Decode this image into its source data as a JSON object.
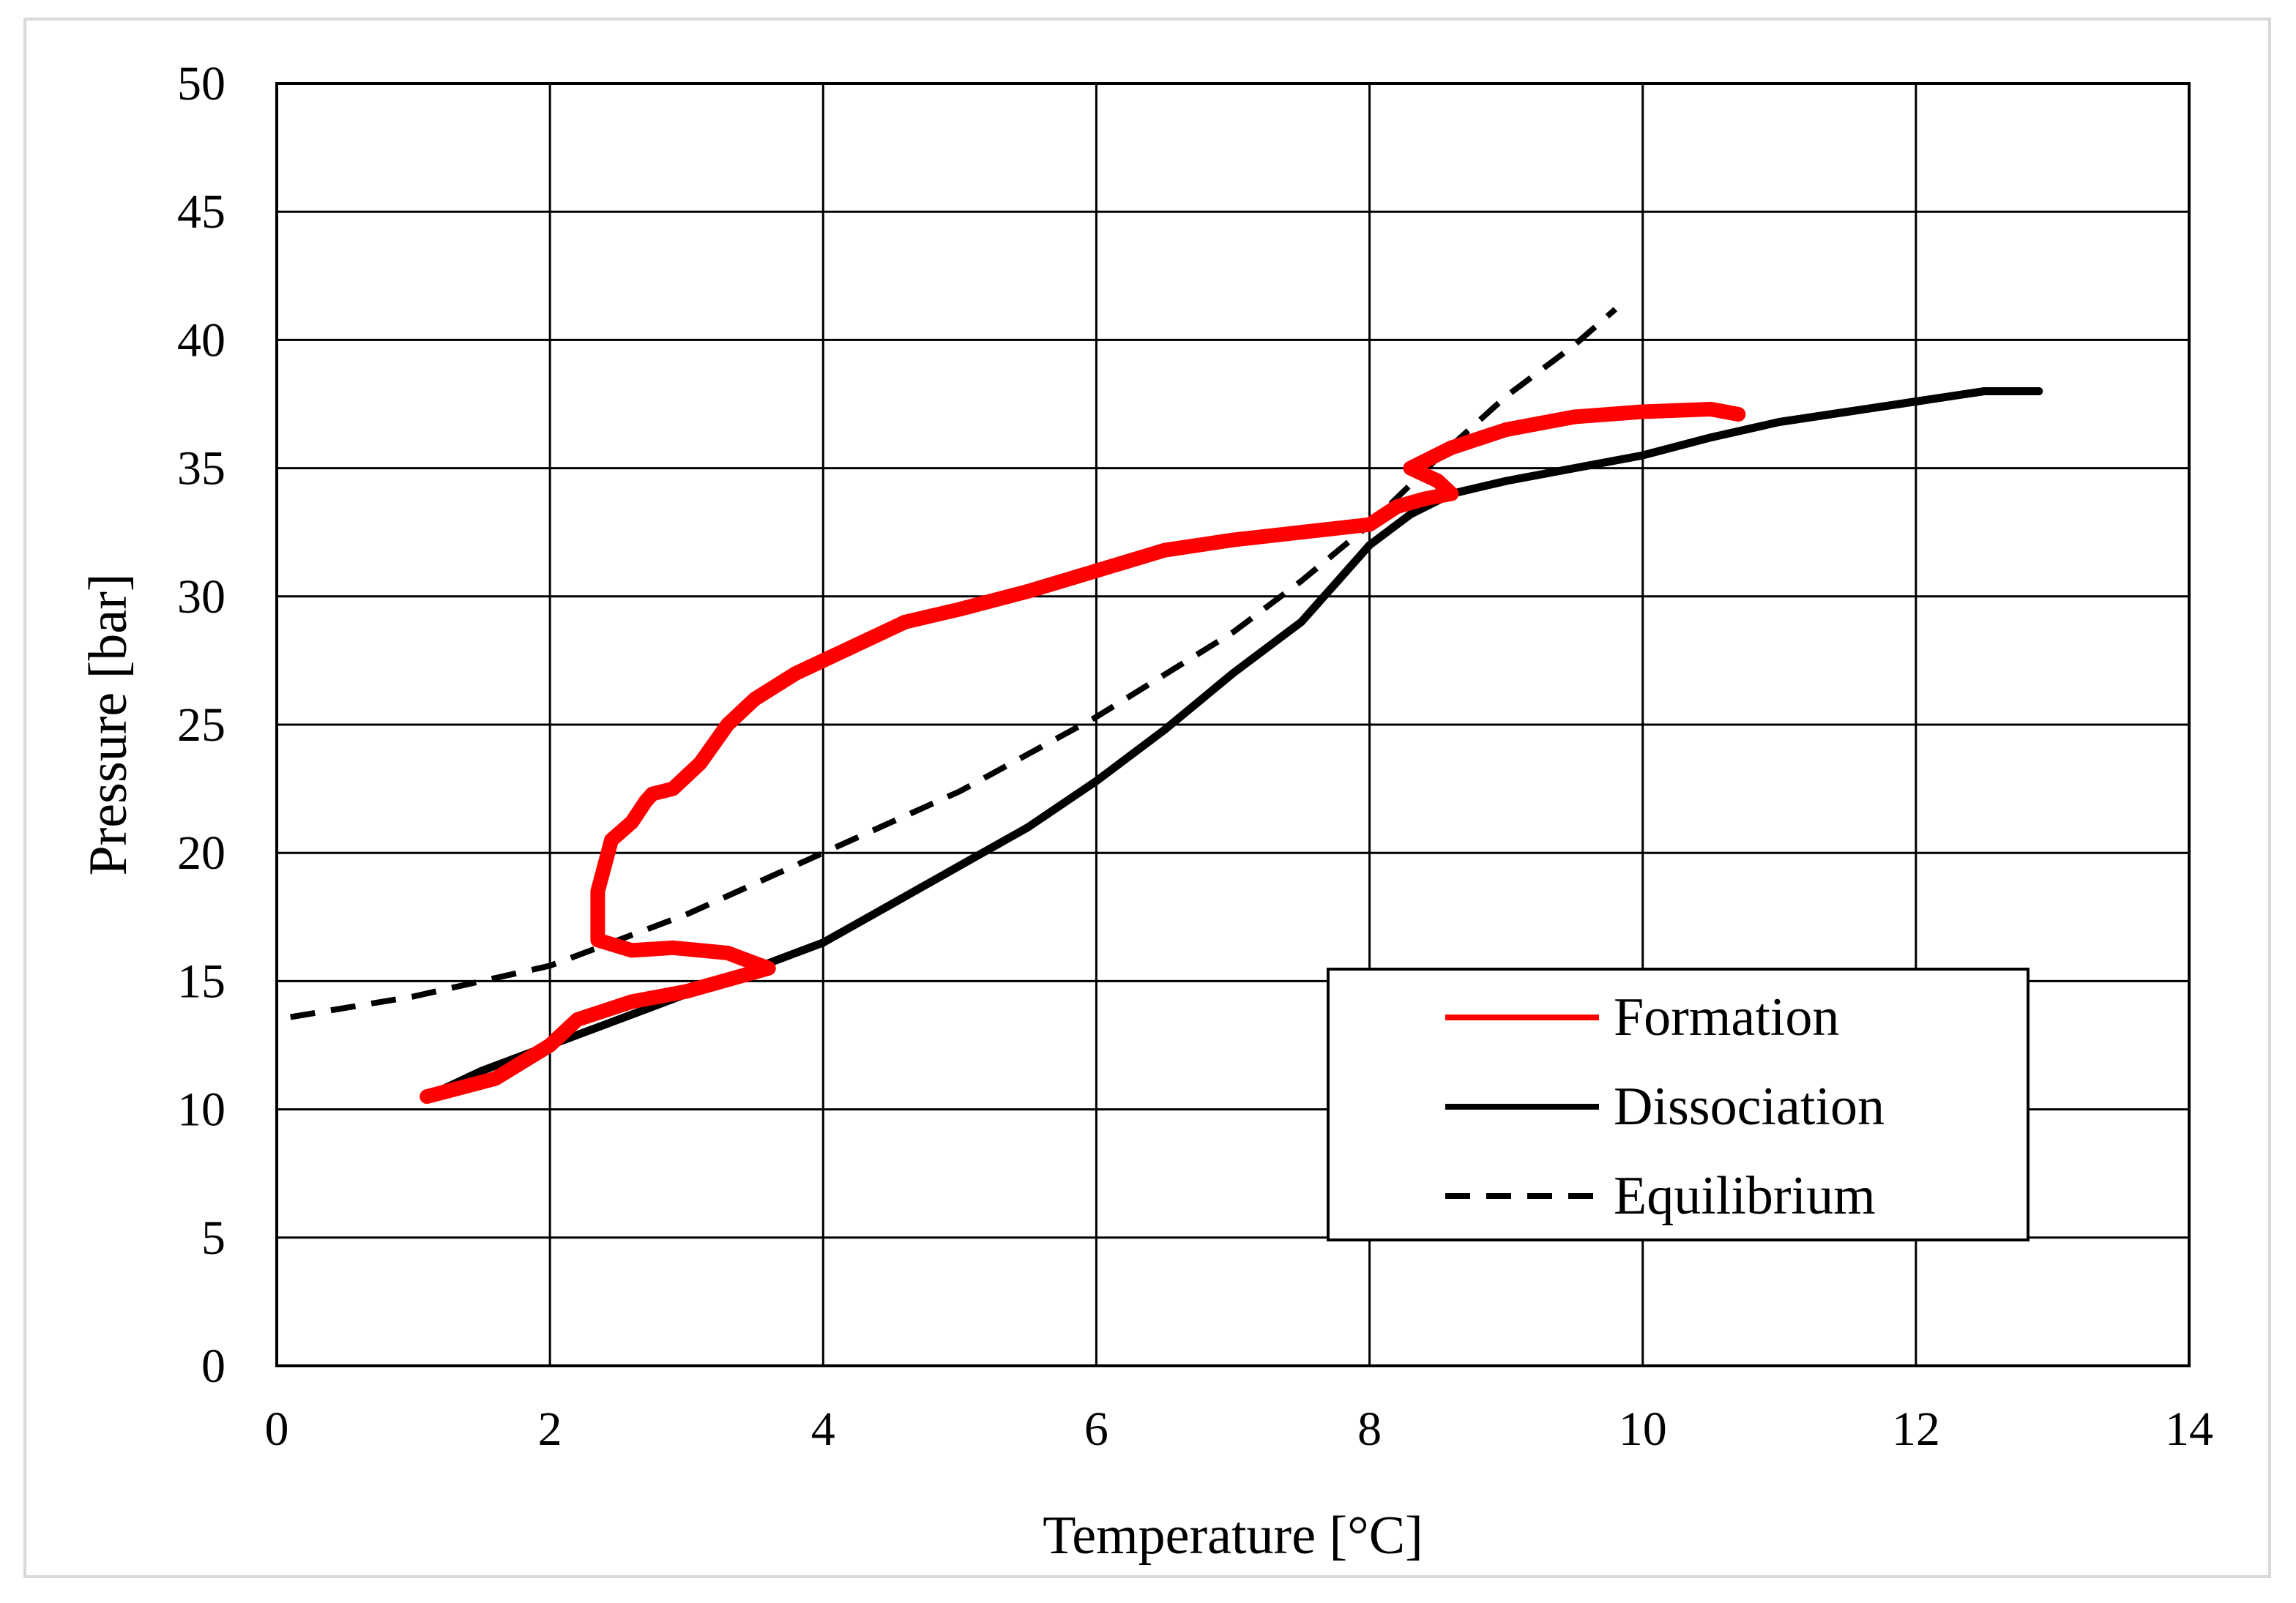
{
  "chart_data": {
    "type": "line",
    "title": "",
    "xlabel": "Temperature [°C]",
    "ylabel": "Pressure [bar]",
    "xlim": [
      0,
      14
    ],
    "ylim": [
      0,
      50
    ],
    "xticks": [
      0,
      2,
      4,
      6,
      8,
      10,
      12,
      14
    ],
    "yticks": [
      0,
      5,
      10,
      15,
      20,
      25,
      30,
      35,
      40,
      45,
      50
    ],
    "grid": true,
    "legend": "inside lower-right",
    "series": [
      {
        "name": "Formation",
        "color": "#ff0000",
        "style": "solid",
        "x": [
          1.1,
          1.6,
          2.0,
          2.2,
          2.6,
          3.0,
          3.4,
          3.6,
          3.3,
          2.9,
          2.6,
          2.35,
          2.35,
          2.45,
          2.6,
          2.7,
          2.75,
          2.9,
          3.1,
          3.3,
          3.5,
          3.8,
          4.2,
          4.6,
          5.0,
          5.5,
          6.0,
          6.5,
          7.0,
          7.5,
          8.0,
          8.2,
          8.4,
          8.6,
          8.5,
          8.3,
          8.6,
          9.0,
          9.5,
          10.0,
          10.5,
          10.7
        ],
        "y": [
          10.5,
          11.2,
          12.5,
          13.5,
          14.2,
          14.6,
          15.2,
          15.5,
          16.1,
          16.3,
          16.2,
          16.6,
          18.5,
          20.5,
          21.2,
          22.0,
          22.3,
          22.5,
          23.5,
          25.0,
          26.0,
          27.0,
          28.0,
          29.0,
          29.5,
          30.2,
          31.0,
          31.8,
          32.2,
          32.5,
          32.8,
          33.5,
          33.8,
          34.0,
          34.5,
          35.0,
          35.8,
          36.5,
          37.0,
          37.2,
          37.3,
          37.1
        ]
      },
      {
        "name": "Dissociation",
        "color": "#000000",
        "style": "solid",
        "x": [
          1.1,
          1.5,
          2.0,
          2.5,
          3.0,
          3.5,
          4.0,
          4.5,
          5.0,
          5.5,
          6.0,
          6.5,
          7.0,
          7.5,
          7.8,
          8.0,
          8.3,
          8.6,
          9.0,
          9.5,
          10.0,
          10.5,
          11.0,
          11.5,
          12.0,
          12.5,
          12.9
        ],
        "y": [
          10.5,
          11.5,
          12.5,
          13.5,
          14.5,
          15.5,
          16.5,
          18.0,
          19.5,
          21.0,
          22.8,
          24.8,
          27.0,
          29.0,
          30.8,
          32.0,
          33.2,
          34.0,
          34.5,
          35.0,
          35.5,
          36.2,
          36.8,
          37.2,
          37.6,
          38.0,
          38.0
        ]
      },
      {
        "name": "Equilibrium",
        "color": "#000000",
        "style": "dashed",
        "x": [
          0.1,
          1.0,
          2.0,
          3.0,
          4.0,
          5.0,
          6.0,
          7.0,
          7.5,
          8.0,
          8.5,
          9.0,
          9.5,
          9.8
        ],
        "y": [
          13.6,
          14.4,
          15.6,
          17.6,
          20.0,
          22.4,
          25.3,
          28.6,
          30.6,
          32.8,
          35.4,
          37.8,
          39.8,
          41.2
        ]
      }
    ]
  }
}
